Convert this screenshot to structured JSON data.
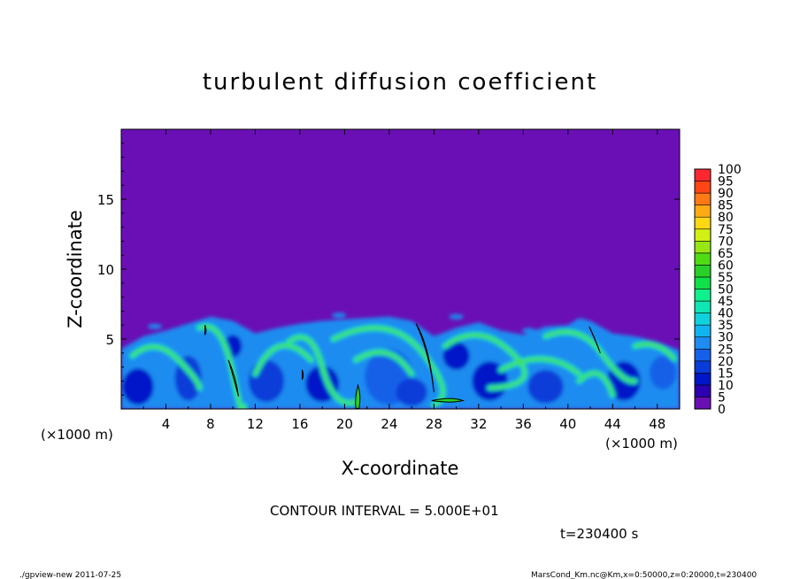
{
  "chart_data": {
    "type": "heatmap",
    "title": "turbulent diffusion coefficient",
    "xlabel": "X-coordinate",
    "ylabel": "Z-coordinate",
    "x_unit": "(×1000 m)",
    "y_unit": "(×1000 m)",
    "xlim": [
      0,
      50
    ],
    "ylim": [
      0,
      20
    ],
    "x_ticks": [
      4,
      8,
      12,
      16,
      20,
      24,
      28,
      32,
      36,
      40,
      44,
      48
    ],
    "y_ticks": [
      5,
      10,
      15
    ],
    "colorbar": {
      "levels": [
        0,
        5,
        10,
        15,
        20,
        25,
        30,
        35,
        40,
        45,
        50,
        55,
        60,
        65,
        70,
        75,
        80,
        85,
        90,
        95,
        100
      ],
      "colors": [
        "#6a0fb5",
        "#2a00b0",
        "#0016c8",
        "#0a3cd8",
        "#1460e8",
        "#1e8cf0",
        "#12b4f0",
        "#10d2dc",
        "#10e6b4",
        "#10f08c",
        "#10e04a",
        "#28d028",
        "#50dc14",
        "#96e614",
        "#d2f014",
        "#ffd814",
        "#ffaa14",
        "#ff7a14",
        "#ff4614",
        "#ff2830",
        "#ff8c8c"
      ]
    },
    "contour_interval": "CONTOUR INTERVAL = 5.000E+01",
    "time_label": "t=230400 s",
    "background_value": 0,
    "turbulent_layer_top_km": 6.5
  },
  "footer": {
    "left": "./gpview-new  2011-07-25",
    "right": "MarsCond_Km.nc@Km,x=0:50000,z=0:20000,t=230400"
  }
}
